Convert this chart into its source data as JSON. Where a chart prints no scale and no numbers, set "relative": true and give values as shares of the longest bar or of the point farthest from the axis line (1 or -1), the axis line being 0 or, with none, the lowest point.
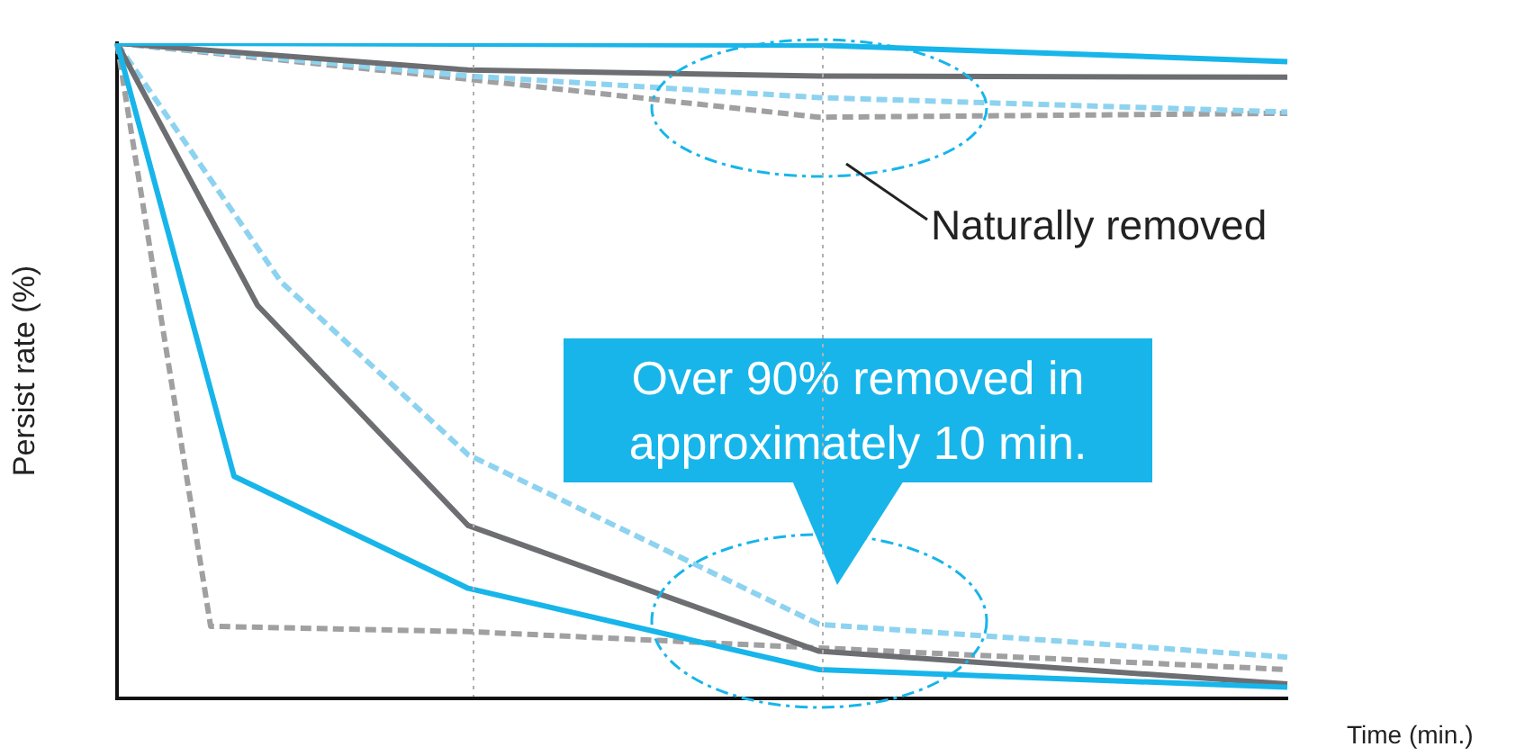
{
  "chart_data": {
    "type": "line",
    "relative": true,
    "ylabel": "Persist rate (%)",
    "xlabel": "Time (min.)",
    "categories": [
      null,
      null,
      null,
      null,
      null,
      null,
      null,
      null,
      null,
      null,
      null,
      null,
      null,
      null,
      null,
      null,
      null,
      null,
      null,
      null,
      null,
      null,
      null,
      null,
      null,
      null,
      null,
      null,
      null,
      null,
      null,
      null,
      null,
      null,
      null,
      null,
      null,
      null,
      null,
      null,
      null,
      null,
      null,
      null,
      null,
      null,
      null,
      null,
      null,
      null,
      null
    ],
    "annotations": [
      "Naturally removed",
      "Over 90% removed in\napproximately 10 min."
    ],
    "series": [
      {
        "color": "#17b5ea",
        "line_style": "solid",
        "values": [
          1,
          null,
          null,
          null,
          null,
          null,
          null,
          null,
          null,
          null,
          null,
          null,
          null,
          null,
          null,
          null,
          null,
          null,
          null,
          null,
          null,
          null,
          null,
          null,
          null,
          null,
          null,
          null,
          null,
          null,
          0.997,
          null,
          null,
          null,
          null,
          null,
          null,
          null,
          null,
          null,
          null,
          null,
          null,
          null,
          null,
          null,
          null,
          null,
          null,
          null,
          0.972
        ]
      },
      {
        "color": "#6d6e71",
        "line_style": "solid",
        "values": [
          1,
          null,
          null,
          null,
          null,
          null,
          null,
          null,
          null,
          null,
          null,
          null,
          null,
          null,
          null,
          0.959,
          null,
          null,
          null,
          null,
          null,
          null,
          null,
          null,
          null,
          null,
          null,
          null,
          null,
          null,
          0.95,
          null,
          null,
          null,
          null,
          null,
          null,
          null,
          null,
          null,
          null,
          null,
          null,
          null,
          null,
          null,
          null,
          null,
          null,
          null,
          0.948
        ]
      },
      {
        "color": "#8dd3f0",
        "line_style": "dashed",
        "values": [
          1,
          null,
          null,
          null,
          null,
          null,
          null,
          null,
          null,
          null,
          null,
          null,
          null,
          null,
          null,
          0.95,
          null,
          null,
          null,
          null,
          null,
          null,
          null,
          null,
          null,
          null,
          null,
          null,
          null,
          null,
          0.917,
          null,
          null,
          null,
          null,
          null,
          null,
          null,
          null,
          null,
          null,
          null,
          null,
          null,
          null,
          null,
          null,
          null,
          null,
          null,
          0.895
        ]
      },
      {
        "color": "#a0a0a2",
        "line_style": "dashed",
        "values": [
          1,
          null,
          null,
          null,
          null,
          null,
          null,
          null,
          null,
          null,
          null,
          null,
          null,
          null,
          null,
          0.945,
          null,
          null,
          null,
          null,
          null,
          null,
          null,
          null,
          null,
          null,
          null,
          null,
          null,
          null,
          0.887,
          null,
          null,
          null,
          null,
          null,
          null,
          null,
          null,
          null,
          null,
          null,
          null,
          null,
          null,
          null,
          null,
          null,
          null,
          null,
          0.893
        ]
      },
      {
        "color": "#17b5ea",
        "line_style": "solid",
        "values": [
          1,
          null,
          null,
          null,
          null,
          0.339,
          null,
          null,
          null,
          null,
          null,
          null,
          null,
          null,
          null,
          0.168,
          null,
          null,
          null,
          null,
          null,
          null,
          null,
          null,
          null,
          null,
          null,
          null,
          null,
          null,
          0.044,
          null,
          null,
          null,
          null,
          null,
          null,
          null,
          null,
          null,
          null,
          null,
          null,
          null,
          null,
          null,
          null,
          null,
          null,
          null,
          0.017
        ]
      },
      {
        "color": "#6d6e71",
        "line_style": "solid",
        "values": [
          1,
          null,
          null,
          null,
          null,
          null,
          0.6,
          null,
          null,
          null,
          null,
          null,
          null,
          null,
          null,
          0.264,
          null,
          null,
          null,
          null,
          null,
          null,
          null,
          null,
          null,
          null,
          null,
          null,
          null,
          null,
          0.072,
          null,
          null,
          null,
          null,
          null,
          null,
          null,
          null,
          null,
          null,
          null,
          null,
          null,
          null,
          null,
          null,
          null,
          null,
          null,
          0.022
        ]
      },
      {
        "color": "#8dd3f0",
        "line_style": "dashed",
        "values": [
          1,
          null,
          null,
          null,
          null,
          null,
          null,
          0.636,
          null,
          null,
          null,
          null,
          null,
          null,
          null,
          0.372,
          null,
          null,
          null,
          null,
          null,
          null,
          null,
          null,
          null,
          null,
          null,
          null,
          null,
          null,
          0.113,
          null,
          null,
          null,
          null,
          null,
          null,
          null,
          null,
          null,
          null,
          null,
          null,
          null,
          null,
          null,
          null,
          null,
          null,
          null,
          0.063
        ]
      },
      {
        "color": "#a0a0a2",
        "line_style": "dashed",
        "values": [
          1,
          null,
          null,
          null,
          0.11,
          null,
          null,
          null,
          null,
          null,
          null,
          null,
          null,
          null,
          null,
          0.102,
          null,
          null,
          null,
          null,
          null,
          null,
          null,
          null,
          null,
          null,
          null,
          null,
          null,
          null,
          0.077,
          null,
          null,
          null,
          null,
          null,
          null,
          null,
          null,
          null,
          null,
          null,
          null,
          null,
          null,
          null,
          null,
          null,
          null,
          null,
          0.044
        ]
      }
    ]
  }
}
